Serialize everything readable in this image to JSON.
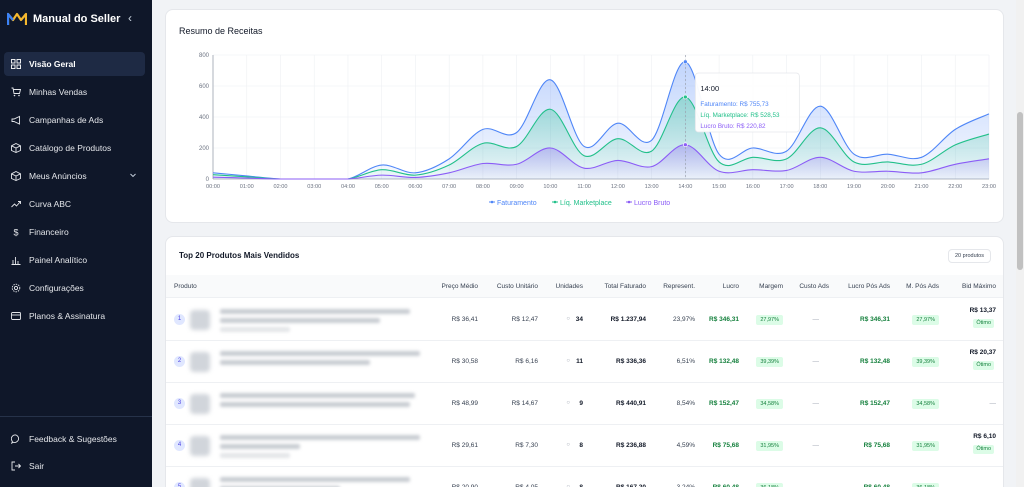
{
  "sidebar": {
    "brand": "Manual do Seller",
    "items": [
      {
        "label": "Visão Geral"
      },
      {
        "label": "Minhas Vendas"
      },
      {
        "label": "Campanhas de Ads"
      },
      {
        "label": "Catálogo de Produtos"
      },
      {
        "label": "Meus Anúncios"
      },
      {
        "label": "Curva ABC"
      },
      {
        "label": "Financeiro"
      },
      {
        "label": "Painel Analítico"
      },
      {
        "label": "Configurações"
      },
      {
        "label": "Planos & Assinatura"
      }
    ],
    "feedback": "Feedback & Sugestões",
    "logout": "Sair"
  },
  "revenue": {
    "title": "Resumo de Receitas",
    "tooltip": {
      "time": "14:00",
      "lines": [
        "Faturamento: R$ 755,73",
        "Líq. Marketplace: R$ 528,53",
        "Lucro Bruto: R$ 220,82"
      ]
    }
  },
  "chart_data": {
    "type": "area",
    "x": [
      "00:00",
      "01:00",
      "02:00",
      "03:00",
      "04:00",
      "05:00",
      "06:00",
      "07:00",
      "08:00",
      "09:00",
      "10:00",
      "11:00",
      "12:00",
      "13:00",
      "14:00",
      "15:00",
      "16:00",
      "17:00",
      "18:00",
      "19:00",
      "20:00",
      "21:00",
      "22:00",
      "23:00"
    ],
    "ylim": [
      0,
      800
    ],
    "yticks": [
      "0",
      "200",
      "400",
      "600",
      "800"
    ],
    "legend_position": "bottom",
    "grid": true,
    "series": [
      {
        "name": "Faturamento",
        "color": "#4f86f7",
        "values": [
          40,
          20,
          0,
          0,
          0,
          90,
          40,
          130,
          320,
          300,
          640,
          210,
          360,
          250,
          756,
          160,
          200,
          180,
          470,
          160,
          160,
          140,
          320,
          420
        ]
      },
      {
        "name": "Líq. Marketplace",
        "color": "#22c08a",
        "values": [
          28,
          14,
          0,
          0,
          0,
          60,
          25,
          90,
          230,
          210,
          450,
          150,
          260,
          180,
          529,
          110,
          140,
          130,
          330,
          110,
          110,
          95,
          220,
          290
        ]
      },
      {
        "name": "Lucro Bruto",
        "color": "#8b5cf6",
        "values": [
          12,
          6,
          0,
          0,
          0,
          25,
          10,
          40,
          100,
          95,
          200,
          70,
          120,
          80,
          221,
          50,
          60,
          55,
          140,
          50,
          50,
          40,
          95,
          130
        ]
      }
    ]
  },
  "products": {
    "title": "Top 20 Produtos Mais Vendidos",
    "count_label": "20 produtos",
    "headers": [
      "Produto",
      "Preço Médio",
      "Custo Unitário",
      "Unidades",
      "Total Faturado",
      "Represent.",
      "Lucro",
      "Margem",
      "Custo Ads",
      "Lucro Pós Ads",
      "M. Pós Ads",
      "Bid Máximo"
    ],
    "rows": [
      {
        "rank": "1",
        "preco": "R$ 36,41",
        "custo": "R$ 12,47",
        "unidades": "34",
        "total": "R$ 1.237,94",
        "repr": "23,97%",
        "lucro": "R$ 346,31",
        "margem": "27,97%",
        "ads": "—",
        "lucro_pos": "R$ 346,31",
        "m_pos": "27,97%",
        "bid": "R$ 13,37",
        "bid_tag": "Ótimo"
      },
      {
        "rank": "2",
        "preco": "R$ 30,58",
        "custo": "R$ 6,16",
        "unidades": "11",
        "total": "R$ 336,36",
        "repr": "6,51%",
        "lucro": "R$ 132,48",
        "margem": "39,39%",
        "ads": "—",
        "lucro_pos": "R$ 132,48",
        "m_pos": "39,39%",
        "bid": "R$ 20,37",
        "bid_tag": "Ótimo"
      },
      {
        "rank": "3",
        "preco": "R$ 48,99",
        "custo": "R$ 14,67",
        "unidades": "9",
        "total": "R$ 440,91",
        "repr": "8,54%",
        "lucro": "R$ 152,47",
        "margem": "34,58%",
        "ads": "—",
        "lucro_pos": "R$ 152,47",
        "m_pos": "34,58%",
        "bid": "—",
        "bid_tag": ""
      },
      {
        "rank": "4",
        "preco": "R$ 29,61",
        "custo": "R$ 7,30",
        "unidades": "8",
        "total": "R$ 236,88",
        "repr": "4,59%",
        "lucro": "R$ 75,68",
        "margem": "31,95%",
        "ads": "—",
        "lucro_pos": "R$ 75,68",
        "m_pos": "31,95%",
        "bid": "R$ 6,10",
        "bid_tag": "Ótimo"
      },
      {
        "rank": "5",
        "preco": "R$ 20,90",
        "custo": "R$ 4,05",
        "unidades": "8",
        "total": "R$ 167,20",
        "repr": "3,24%",
        "lucro": "R$ 60,48",
        "margem": "36,18%",
        "ads": "—",
        "lucro_pos": "R$ 60,48",
        "m_pos": "36,18%",
        "bid": "",
        "bid_tag": ""
      }
    ]
  }
}
